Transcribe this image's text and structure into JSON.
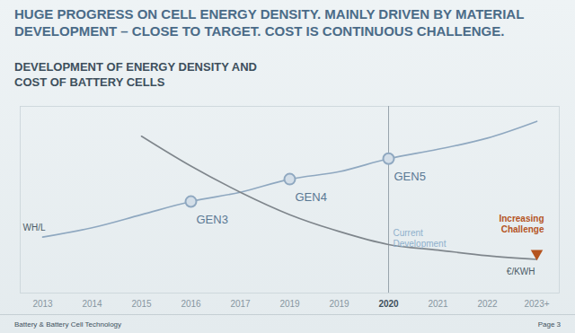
{
  "chart_data": {
    "type": "line",
    "title": "HUGE PROGRESS ON CELL ENERGY DENSITY. MAINLY DRIVEN BY MATERIAL DEVELOPMENT – CLOSE TO TARGET. COST IS CONTINUOUS CHALLENGE.",
    "subtitle": "DEVELOPMENT OF ENERGY DENSITY AND COST OF BATTERY CELLS",
    "categories": [
      "2013",
      "2014",
      "2015",
      "2016",
      "2017",
      "2019",
      "2019",
      "2020",
      "2021",
      "2022",
      "2023+"
    ],
    "series": [
      {
        "name": "WH/L",
        "color": "#8fa8c0",
        "marker": "circle",
        "values": [
          30,
          35,
          42,
          49,
          54,
          61,
          65,
          72,
          77,
          83,
          92
        ],
        "point_labels": [
          null,
          null,
          null,
          "GEN3",
          null,
          "GEN4",
          null,
          "GEN5",
          null,
          null,
          null
        ]
      },
      {
        "name": "€/KWH",
        "color": "#7f868c",
        "values": [
          null,
          null,
          84,
          68,
          54,
          42,
          33,
          26,
          23,
          20,
          18
        ]
      }
    ],
    "ylim": [
      0,
      100
    ],
    "yticks": [],
    "tick_labels": "x",
    "grid": false,
    "vline": "2020",
    "annotations": [
      {
        "text": "Current Development",
        "x": "2020"
      },
      {
        "text": "Increasing Challenge",
        "x": "2023+",
        "color": "#b5541f"
      }
    ],
    "footer": {
      "left": "Battery & Battery Cell Technology",
      "right": "Page 3"
    }
  }
}
